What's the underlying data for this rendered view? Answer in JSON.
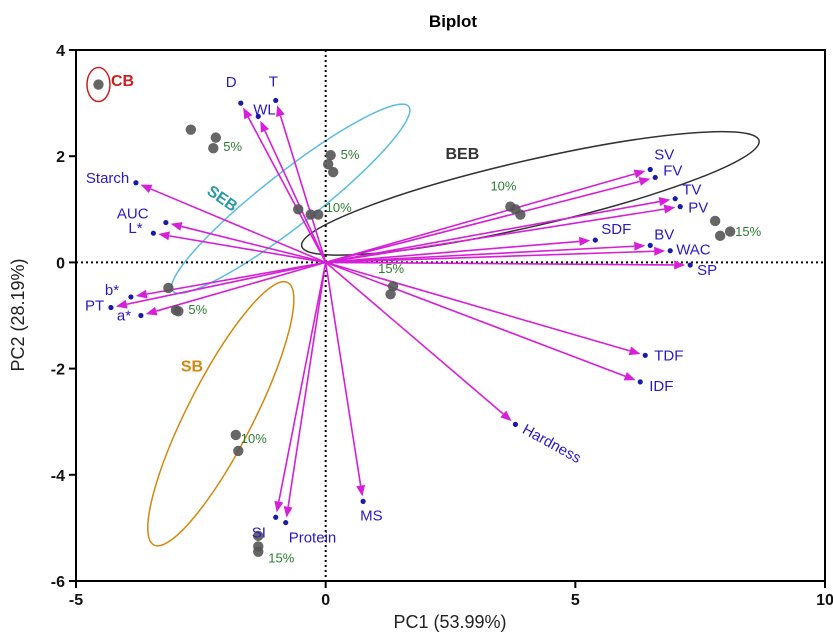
{
  "chart_data": {
    "type": "scatter",
    "subtype": "biplot",
    "title": "Biplot",
    "xlabel": "PC1 (53.99%)",
    "ylabel": "PC2 (28.19%)",
    "xlim": [
      -5,
      10
    ],
    "ylim": [
      -6,
      4
    ],
    "x_ticks": [
      "-5",
      "0",
      "5",
      "10"
    ],
    "x_tick_values": [
      -5,
      0,
      5,
      10
    ],
    "y_ticks": [
      "-6",
      "-4",
      "-2",
      "0",
      "2",
      "4"
    ],
    "y_tick_values": [
      -6,
      -4,
      -2,
      0,
      2,
      4
    ],
    "reference_lines": "dotted lines at x=0 and y=0",
    "colors": {
      "loading_arrow": "#d61fd9",
      "loading_point": "#1a1aa8",
      "variable_text": "#2b18c8",
      "score_point": "#555555",
      "percent_text": "#2e7d32"
    },
    "loadings": [
      {
        "name": "D",
        "x": -1.7,
        "y": 3.0
      },
      {
        "name": "WL",
        "x": -1.35,
        "y": 2.75
      },
      {
        "name": "T",
        "x": -1.0,
        "y": 3.05
      },
      {
        "name": "Starch",
        "x": -3.8,
        "y": 1.5
      },
      {
        "name": "AUC",
        "x": -3.2,
        "y": 0.75
      },
      {
        "name": "L*",
        "x": -3.45,
        "y": 0.55
      },
      {
        "name": "b*",
        "x": -3.9,
        "y": -0.65
      },
      {
        "name": "PT",
        "x": -4.3,
        "y": -0.85
      },
      {
        "name": "a*",
        "x": -3.7,
        "y": -1.0
      },
      {
        "name": "SI",
        "x": -1.0,
        "y": -4.8
      },
      {
        "name": "Protein",
        "x": -0.8,
        "y": -4.9
      },
      {
        "name": "MS",
        "x": 0.75,
        "y": -4.5
      },
      {
        "name": "Hardness",
        "x": 3.8,
        "y": -3.05
      },
      {
        "name": "SV",
        "x": 6.5,
        "y": 1.75
      },
      {
        "name": "FV",
        "x": 6.6,
        "y": 1.6
      },
      {
        "name": "TV",
        "x": 7.0,
        "y": 1.2
      },
      {
        "name": "PV",
        "x": 7.1,
        "y": 1.05
      },
      {
        "name": "SDF",
        "x": 5.4,
        "y": 0.42
      },
      {
        "name": "BV",
        "x": 6.5,
        "y": 0.32
      },
      {
        "name": "WAC",
        "x": 6.9,
        "y": 0.22
      },
      {
        "name": "SP",
        "x": 7.3,
        "y": -0.05
      },
      {
        "name": "TDF",
        "x": 6.4,
        "y": -1.75
      },
      {
        "name": "IDF",
        "x": 6.3,
        "y": -2.25
      }
    ],
    "groups": [
      {
        "name": "CB",
        "color": "#cc1f1f",
        "ellipse": {
          "cx": -4.55,
          "cy": 3.35,
          "rx": 0.23,
          "ry": 0.32,
          "angle": 0
        },
        "label": {
          "text": "CB",
          "x": -4.3,
          "y": 3.32
        },
        "points": [
          [
            -4.55,
            3.35
          ]
        ]
      },
      {
        "name": "SEB",
        "color": "#5bbce4",
        "ellipse": {
          "cx": -0.7,
          "cy": 1.2,
          "rx": 3.0,
          "ry": 0.5,
          "angle": -38
        },
        "label": {
          "text": "SEB",
          "x": -2.4,
          "y": 1.3
        },
        "points": [
          [
            -2.7,
            2.5
          ],
          [
            -2.2,
            2.35
          ],
          [
            -2.25,
            2.15
          ],
          [
            -0.55,
            1.0
          ],
          [
            -0.3,
            0.9
          ],
          [
            -0.15,
            0.9
          ],
          [
            1.35,
            -0.45
          ],
          [
            1.3,
            -0.6
          ]
        ],
        "percent_labels": [
          {
            "text": "5%",
            "x": -2.05,
            "y": 2.1
          },
          {
            "text": "10%",
            "x": 0.0,
            "y": 0.95
          },
          {
            "text": "15%",
            "x": 1.05,
            "y": -0.2
          }
        ]
      },
      {
        "name": "BEB",
        "color": "#333333",
        "ellipse": {
          "cx": 4.1,
          "cy": 1.3,
          "rx": 4.7,
          "ry": 0.62,
          "angle": -13
        },
        "label": {
          "text": "BEB",
          "x": 2.4,
          "y": 1.95
        },
        "points": [
          [
            0.1,
            2.02
          ],
          [
            0.05,
            1.85
          ],
          [
            0.15,
            1.7
          ],
          [
            3.7,
            1.05
          ],
          [
            3.8,
            1.0
          ],
          [
            3.9,
            0.9
          ],
          [
            7.8,
            0.78
          ],
          [
            7.9,
            0.5
          ],
          [
            8.1,
            0.58
          ]
        ],
        "percent_labels": [
          {
            "text": "5%",
            "x": 0.3,
            "y": 1.95
          },
          {
            "text": "10%",
            "x": 3.3,
            "y": 1.35
          },
          {
            "text": "15%",
            "x": 8.2,
            "y": 0.5
          }
        ]
      },
      {
        "name": "SB",
        "color": "#d4870c",
        "ellipse": {
          "cx": -2.1,
          "cy": -2.85,
          "rx": 2.95,
          "ry": 0.62,
          "angle": -63
        },
        "label": {
          "text": "SB",
          "x": -2.9,
          "y": -2.05
        },
        "points": [
          [
            -3.15,
            -0.48
          ],
          [
            -3.0,
            -0.9
          ],
          [
            -2.95,
            -0.92
          ],
          [
            -1.8,
            -3.25
          ],
          [
            -1.75,
            -3.55
          ],
          [
            -1.35,
            -5.15
          ],
          [
            -1.35,
            -5.35
          ],
          [
            -1.35,
            -5.45
          ]
        ],
        "percent_labels": [
          {
            "text": "5%",
            "x": -2.75,
            "y": -0.97
          },
          {
            "text": "10%",
            "x": -1.7,
            "y": -3.4
          },
          {
            "text": "15%",
            "x": -1.15,
            "y": -5.65
          }
        ]
      }
    ]
  }
}
